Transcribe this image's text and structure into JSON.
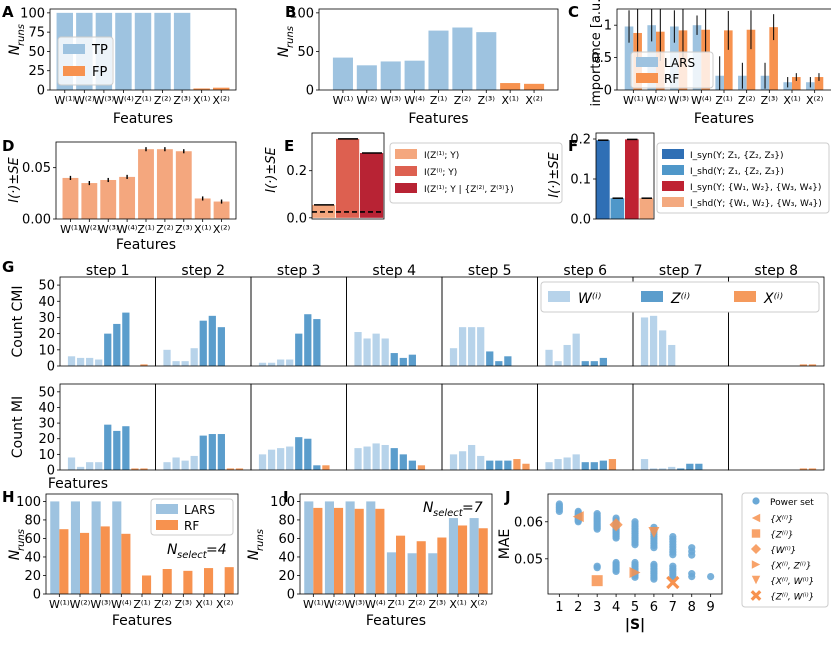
{
  "colors": {
    "blue": "#9ec3e0",
    "orange": "#f7924f",
    "salmon": "#f4a77e",
    "wlight": "#b7d3ea",
    "zmid": "#5b9dcc",
    "xorange": "#f59a5c",
    "synblue": "#2f6fb5",
    "shdblue": "#4f97c9",
    "synred": "#bf2232",
    "shdsalmon": "#f3a97f",
    "eb1": "#f4a77e",
    "eb2": "#dd6050",
    "eb3": "#b82334",
    "ps": "#6aa8d6"
  },
  "features_labels": [
    "W⁽¹⁾",
    "W⁽²⁾",
    "W⁽³⁾",
    "W⁽⁴⁾",
    "Z⁽¹⁾",
    "Z⁽²⁾",
    "Z⁽³⁾",
    "X⁽¹⁾",
    "X⁽²⁾"
  ],
  "chart_data": [
    {
      "panel": "A",
      "type": "bar",
      "xlabel": "Features",
      "ylabel": "N_runs",
      "ylim": [
        0,
        105
      ],
      "yticks": [
        0,
        25,
        50,
        75,
        100
      ],
      "legend": [
        "TP",
        "FP"
      ],
      "legend_position": "center-left",
      "series": [
        {
          "name": "TP",
          "values": [
            100,
            100,
            100,
            100,
            100,
            100,
            100,
            0,
            0
          ]
        },
        {
          "name": "FP",
          "values": [
            0,
            0,
            0,
            0,
            0,
            0,
            0,
            2,
            3
          ]
        }
      ]
    },
    {
      "panel": "B",
      "type": "bar",
      "xlabel": "Features",
      "ylabel": "N_runs",
      "ylim": [
        0,
        105
      ],
      "yticks": [
        0,
        50,
        100
      ],
      "series": [
        {
          "name": "TP",
          "values": [
            42,
            32,
            37,
            38,
            77,
            81,
            75,
            0,
            0
          ]
        },
        {
          "name": "FP",
          "values": [
            0,
            0,
            0,
            0,
            0,
            0,
            0,
            9,
            8
          ]
        }
      ]
    },
    {
      "panel": "C",
      "type": "bar",
      "xlabel": "Features",
      "ylabel": "importance [a.u.]",
      "ylim": [
        0,
        1.25
      ],
      "yticks": [
        0,
        0.5,
        1
      ],
      "legend": [
        "LARS",
        "RF"
      ],
      "legend_position": "lower-left",
      "series": [
        {
          "name": "LARS",
          "values": [
            0.98,
            1.0,
            0.98,
            1.0,
            0.22,
            0.22,
            0.22,
            0.12,
            0.12
          ],
          "err": [
            0.25,
            0.25,
            0.25,
            0.15,
            0.3,
            0.2,
            0.2,
            0.08,
            0.08
          ]
        },
        {
          "name": "RF",
          "values": [
            0.88,
            0.9,
            0.92,
            0.93,
            0.92,
            0.93,
            0.97,
            0.2,
            0.2
          ],
          "err": [
            0.45,
            0.45,
            0.45,
            0.35,
            0.3,
            0.3,
            0.2,
            0.06,
            0.06
          ]
        }
      ]
    },
    {
      "panel": "D",
      "type": "bar",
      "xlabel": "Features",
      "ylabel": "I(·)±SE",
      "ylim": [
        0,
        0.075
      ],
      "yticks": [
        0.0,
        0.05
      ],
      "values": [
        0.04,
        0.035,
        0.038,
        0.041,
        0.068,
        0.068,
        0.066,
        0.02,
        0.017
      ],
      "err": [
        0.002,
        0.002,
        0.002,
        0.002,
        0.002,
        0.002,
        0.002,
        0.002,
        0.002
      ]
    },
    {
      "panel": "E",
      "type": "bar",
      "ylabel": "I(·)±SE",
      "ylim": [
        -0.005,
        0.36
      ],
      "yticks": [
        0.0,
        0.2
      ],
      "values": [
        0.055,
        0.335,
        0.275
      ],
      "floor": 0.025,
      "legend": [
        "I(Z⁽¹⁾; Y)",
        "I(Z⁽ⁱ⁾; Y)",
        "I(Z⁽¹⁾; Y | {Z⁽²⁾, Z⁽³⁾})"
      ]
    },
    {
      "panel": "F",
      "type": "bar",
      "ylabel": "I(·)±SE",
      "ylim": [
        0,
        0.215
      ],
      "yticks": [
        0.0,
        0.1,
        0.2
      ],
      "values": [
        0.197,
        0.052,
        0.199,
        0.052
      ],
      "legend": [
        "I_syn(Y; Z₁, {Z₂, Z₃})",
        "I_shd(Y; Z₁, {Z₂, Z₃})",
        "I_syn(Y; {W₁, W₂}, {W₃, W₄})",
        "I_shd(Y; {W₁, W₂}, {W₃, W₄})"
      ]
    },
    {
      "panel": "G",
      "type": "bar",
      "xlabel": "Features",
      "ylim": [
        0,
        55
      ],
      "yticks": [
        0,
        10,
        20,
        30,
        40,
        50
      ],
      "legend": [
        "W⁽ⁱ⁾",
        "Z⁽ⁱ⁾",
        "X⁽ⁱ⁾"
      ],
      "steps": [
        "step 1",
        "step 2",
        "step 3",
        "step 4",
        "step 5",
        "step 6",
        "step 7",
        "step 8"
      ],
      "rows": [
        {
          "ylabel": "Count CMI",
          "values": [
            [
              6,
              5,
              5,
              4,
              20,
              26,
              33,
              0,
              1
            ],
            [
              10,
              3,
              3,
              11,
              28,
              31,
              24,
              0,
              0
            ],
            [
              2,
              2,
              4,
              4,
              20,
              32,
              29,
              0,
              0
            ],
            [
              21,
              17,
              20,
              17,
              8,
              5,
              7,
              0,
              0
            ],
            [
              11,
              24,
              24,
              24,
              9,
              3,
              6,
              0,
              0
            ],
            [
              10,
              3,
              13,
              20,
              3,
              3,
              5,
              0,
              0
            ],
            [
              30,
              31,
              22,
              13,
              0,
              0,
              0,
              0,
              0
            ],
            [
              0,
              0,
              0,
              0,
              0,
              0,
              0,
              1,
              1
            ]
          ]
        },
        {
          "ylabel": "Count MI",
          "values": [
            [
              8,
              2,
              5,
              5,
              29,
              25,
              28,
              1,
              1
            ],
            [
              5,
              8,
              6,
              9,
              22,
              23,
              23,
              1,
              1
            ],
            [
              10,
              13,
              14,
              15,
              21,
              20,
              3,
              3,
              0
            ],
            [
              14,
              15,
              17,
              16,
              14,
              10,
              6,
              3,
              0
            ],
            [
              10,
              12,
              16,
              9,
              6,
              6,
              6,
              7,
              4
            ],
            [
              5,
              7,
              8,
              10,
              5,
              5,
              6,
              7,
              0
            ],
            [
              7,
              1,
              1,
              2,
              1,
              4,
              4,
              0,
              0
            ],
            [
              0,
              0,
              0,
              0,
              0,
              0,
              0,
              1,
              1
            ]
          ]
        }
      ]
    },
    {
      "panel": "H",
      "type": "bar",
      "xlabel": "Features",
      "ylabel": "N_runs",
      "ylim": [
        0,
        108
      ],
      "yticks": [
        0,
        20,
        40,
        60,
        80,
        100
      ],
      "legend": [
        "LARS",
        "RF"
      ],
      "annotation": "N_select=4",
      "series": [
        {
          "name": "LARS",
          "values": [
            100,
            100,
            100,
            100,
            0,
            0,
            0,
            0,
            0
          ]
        },
        {
          "name": "RF",
          "values": [
            70,
            66,
            73,
            65,
            20,
            27,
            25,
            28,
            29
          ]
        }
      ]
    },
    {
      "panel": "I",
      "type": "bar",
      "xlabel": "Features",
      "ylabel": "N_runs",
      "ylim": [
        0,
        108
      ],
      "yticks": [
        0,
        20,
        40,
        60,
        80,
        100
      ],
      "annotation": "N_select=7",
      "series": [
        {
          "name": "LARS",
          "values": [
            100,
            100,
            100,
            100,
            45,
            44,
            44,
            82,
            82
          ]
        },
        {
          "name": "RF",
          "values": [
            93,
            93,
            92,
            92,
            63,
            57,
            61,
            74,
            71
          ]
        }
      ]
    },
    {
      "panel": "J",
      "type": "scatter",
      "xlabel": "|S|",
      "ylabel": "MAE",
      "xlim": [
        0.4,
        9.6
      ],
      "ylim": [
        0.0405,
        0.0675
      ],
      "xticks": [
        1,
        2,
        3,
        4,
        5,
        6,
        7,
        8,
        9
      ],
      "yticks": [
        0.05,
        0.06
      ],
      "legend": [
        "Power set",
        "{X⁽ⁱ⁾}",
        "{Z⁽ⁱ⁾}",
        "{W⁽ⁱ⁾}",
        "{X⁽ⁱ⁾, Z⁽ⁱ⁾}",
        "{X⁽ⁱ⁾, W⁽ⁱ⁾}",
        "{Z⁽ⁱ⁾, W⁽ⁱ⁾}"
      ],
      "power_set": [
        {
          "x": 1,
          "ys": [
            0.0648,
            0.0643,
            0.0638,
            0.0633,
            0.0628
          ]
        },
        {
          "x": 2,
          "ys": [
            0.0628,
            0.0624,
            0.0621,
            0.0618,
            0.0615,
            0.0612,
            0.0609,
            0.0606,
            0.0603,
            0.06
          ]
        },
        {
          "x": 3,
          "ys": [
            0.0622,
            0.0617,
            0.0612,
            0.0608,
            0.0604,
            0.06,
            0.0596,
            0.0592,
            0.0588,
            0.0584,
            0.058,
            0.048,
            0.0476
          ]
        },
        {
          "x": 4,
          "ys": [
            0.061,
            0.0605,
            0.06,
            0.0596,
            0.0592,
            0.0588,
            0.0584,
            0.058,
            0.0576,
            0.0572,
            0.0568,
            0.0564,
            0.056,
            0.0556,
            0.049,
            0.0486,
            0.0482,
            0.0478,
            0.0474,
            0.047,
            0.0466
          ]
        },
        {
          "x": 5,
          "ys": [
            0.06,
            0.0594,
            0.0588,
            0.0583,
            0.0578,
            0.0573,
            0.0568,
            0.0563,
            0.0558,
            0.0553,
            0.0548,
            0.0543,
            0.0538,
            0.049,
            0.0485,
            0.048,
            0.0475,
            0.047,
            0.0465,
            0.046,
            0.0455,
            0.045
          ]
        },
        {
          "x": 6,
          "ys": [
            0.0585,
            0.0578,
            0.0572,
            0.0566,
            0.056,
            0.0554,
            0.0548,
            0.0542,
            0.0536,
            0.053,
            0.0485,
            0.048,
            0.0475,
            0.047,
            0.0465,
            0.046,
            0.0455,
            0.045,
            0.0445
          ]
        },
        {
          "x": 7,
          "ys": [
            0.056,
            0.0553,
            0.0546,
            0.0539,
            0.0532,
            0.0525,
            0.0518,
            0.0511,
            0.048,
            0.0474,
            0.0468,
            0.0462,
            0.0456,
            0.045,
            0.0444
          ]
        },
        {
          "x": 8,
          "ys": [
            0.053,
            0.052,
            0.051,
            0.046,
            0.0452
          ]
        },
        {
          "x": 9,
          "ys": [
            0.0452
          ]
        }
      ],
      "subsets": [
        {
          "name": "{X⁽ⁱ⁾}",
          "marker": "tri-left",
          "x": 2,
          "y": 0.0614
        },
        {
          "name": "{Z⁽ⁱ⁾}",
          "marker": "square",
          "x": 3,
          "y": 0.0441
        },
        {
          "name": "{W⁽ⁱ⁾}",
          "marker": "diamond",
          "x": 4,
          "y": 0.0592
        },
        {
          "name": "{X⁽ⁱ⁾, Z⁽ⁱ⁾}",
          "marker": "tri-right",
          "x": 5,
          "y": 0.0463
        },
        {
          "name": "{X⁽ⁱ⁾, W⁽ⁱ⁾}",
          "marker": "tri-down",
          "x": 6,
          "y": 0.0571
        },
        {
          "name": "{Z⁽ⁱ⁾, W⁽ⁱ⁾}",
          "marker": "x-filled",
          "x": 7,
          "y": 0.0436
        }
      ]
    }
  ]
}
